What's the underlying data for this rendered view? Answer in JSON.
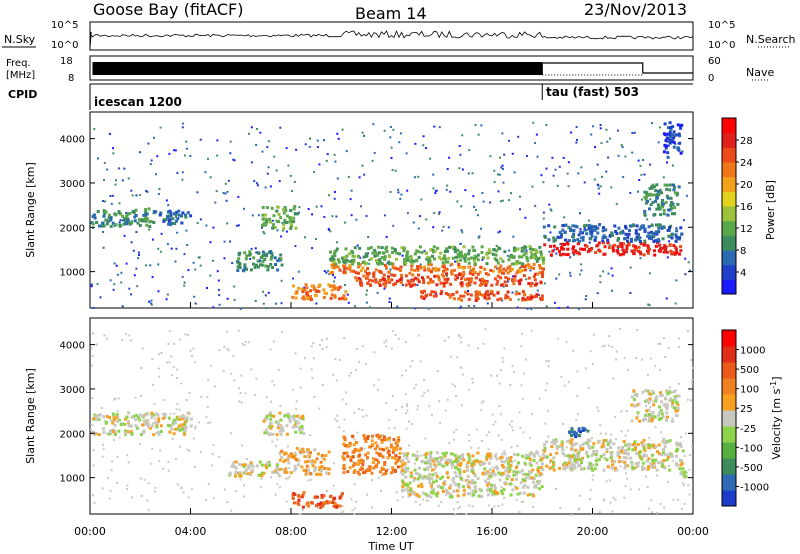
{
  "header": {
    "station": "Goose Bay (fitACF)",
    "beam": "Beam 14",
    "date": "23/Nov/2013"
  },
  "noise_panel": {
    "left_label": "N.Sky",
    "right_label": "N.Search",
    "ticks_left": [
      "10^5",
      "10^0"
    ],
    "ticks_right": [
      "10^5",
      "10^0"
    ]
  },
  "freq_panel": {
    "left_label_1": "Freq.",
    "left_label_2": "[MHz]",
    "right_label": "Nave",
    "ticks_left": [
      "18",
      "8"
    ],
    "ticks_right": [
      "60",
      "0"
    ]
  },
  "cpid_panel": {
    "label": "CPID",
    "modes": [
      {
        "name": "icescan 1200",
        "start_hour": 0
      },
      {
        "name": "tau (fast) 503",
        "start_hour": 18
      }
    ]
  },
  "chart_data": [
    {
      "type": "heatmap",
      "parameter": "power",
      "ylabel": "Slant Range [km]",
      "xlabel": "Time UT",
      "xlim": [
        0,
        24
      ],
      "ylim": [
        180,
        4600
      ],
      "yticks": [
        "1000",
        "2000",
        "3000",
        "4000"
      ],
      "colorbar": {
        "label": "Power [dB]",
        "ticks": [
          "4",
          "8",
          "12",
          "16",
          "20",
          "24",
          "28"
        ],
        "levels": [
          "#1a1aff",
          "#2040c8",
          "#2a6ab0",
          "#3d8c5c",
          "#5aa84a",
          "#9bc23a",
          "#e2d31e",
          "#f2a21a",
          "#f0761a",
          "#ec4a18",
          "#e01f1a",
          "#ff0000"
        ]
      },
      "regions": [
        {
          "t0": 0.0,
          "t1": 2.5,
          "r0": 2050,
          "r1": 2450,
          "level": 3
        },
        {
          "t0": 2.5,
          "t1": 4.0,
          "r0": 2100,
          "r1": 2400,
          "level": 2
        },
        {
          "t0": 6.8,
          "t1": 8.2,
          "r0": 2000,
          "r1": 2500,
          "level": 4
        },
        {
          "t0": 5.8,
          "t1": 7.6,
          "r0": 1050,
          "r1": 1500,
          "level": 3
        },
        {
          "t0": 8.0,
          "t1": 10.2,
          "r0": 400,
          "r1": 750,
          "level": 8
        },
        {
          "t0": 9.5,
          "t1": 18.0,
          "r0": 1000,
          "r1": 1200,
          "level": 8
        },
        {
          "t0": 9.5,
          "t1": 18.0,
          "r0": 1200,
          "r1": 1600,
          "level": 4
        },
        {
          "t0": 10.5,
          "t1": 18.0,
          "r0": 700,
          "r1": 1000,
          "level": 9
        },
        {
          "t0": 13.0,
          "t1": 18.0,
          "r0": 380,
          "r1": 600,
          "level": 9
        },
        {
          "t0": 18.0,
          "t1": 23.5,
          "r0": 1400,
          "r1": 1700,
          "level": 10
        },
        {
          "t0": 18.0,
          "t1": 23.5,
          "r0": 1700,
          "r1": 2100,
          "level": 2
        },
        {
          "t0": 22.0,
          "t1": 23.4,
          "r0": 2300,
          "r1": 3000,
          "level": 3
        },
        {
          "t0": 22.8,
          "t1": 23.5,
          "r0": 3600,
          "r1": 4400,
          "level": 1
        }
      ]
    },
    {
      "type": "heatmap",
      "parameter": "velocity",
      "ylabel": "Slant Range [km]",
      "xlabel": "Time UT",
      "xlim": [
        0,
        24
      ],
      "ylim": [
        180,
        4600
      ],
      "xticks": [
        "00:00",
        "04:00",
        "08:00",
        "12:00",
        "16:00",
        "20:00",
        "00:00"
      ],
      "yticks": [
        "1000",
        "2000",
        "3000",
        "4000"
      ],
      "colorbar": {
        "label": "Velocity [m s^-1]",
        "ticks": [
          "1000",
          "500",
          "100",
          "25",
          "-25",
          "-100",
          "-500",
          "-1000"
        ],
        "levels": [
          "#1a3cc8",
          "#2e6ab4",
          "#3d8c5c",
          "#55b040",
          "#8cd24a",
          "#c8c8c0",
          "#f7a020",
          "#f08020",
          "#ea5a18",
          "#e02e18",
          "#ff0000"
        ]
      },
      "regions": [
        {
          "t0": 0.0,
          "t1": 4.0,
          "r0": 2000,
          "r1": 2500,
          "level": 5
        },
        {
          "t0": 6.8,
          "t1": 8.5,
          "r0": 2000,
          "r1": 2500,
          "level": 5
        },
        {
          "t0": 5.5,
          "t1": 7.5,
          "r0": 1050,
          "r1": 1400,
          "level": 5
        },
        {
          "t0": 7.5,
          "t1": 9.5,
          "r0": 1100,
          "r1": 1700,
          "level": 6
        },
        {
          "t0": 8.0,
          "t1": 10.0,
          "r0": 350,
          "r1": 700,
          "level": 8
        },
        {
          "t0": 10.0,
          "t1": 12.3,
          "r0": 1100,
          "r1": 2000,
          "level": 7
        },
        {
          "t0": 12.3,
          "t1": 18.0,
          "r0": 600,
          "r1": 1600,
          "level": 5
        },
        {
          "t0": 18.0,
          "t1": 23.6,
          "r0": 1200,
          "r1": 1900,
          "level": 5
        },
        {
          "t0": 19.0,
          "t1": 20.0,
          "r0": 1900,
          "r1": 2150,
          "level": 1
        },
        {
          "t0": 23.4,
          "t1": 23.7,
          "r0": 900,
          "r1": 1250,
          "level": 4
        },
        {
          "t0": 21.5,
          "t1": 23.4,
          "r0": 2300,
          "r1": 3000,
          "level": 5
        }
      ]
    }
  ]
}
